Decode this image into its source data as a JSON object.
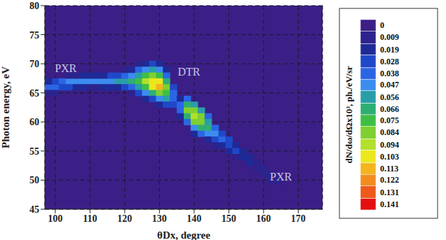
{
  "chart_data": {
    "type": "heatmap",
    "x_label": "θDx, degree",
    "y_label": "Photon energy, eV",
    "xlim": [
      97,
      177
    ],
    "xticks": [
      100,
      110,
      120,
      130,
      140,
      150,
      160,
      170
    ],
    "ylim": [
      45,
      80
    ],
    "yticks": [
      45,
      50,
      55,
      60,
      65,
      70,
      75,
      80
    ],
    "grid": true,
    "annotations": [
      {
        "text": "PXR",
        "x": 103,
        "y": 69.3
      },
      {
        "text": "DTR",
        "x": 138.5,
        "y": 68.7
      },
      {
        "text": "PXR",
        "x": 165,
        "y": 50.6
      }
    ],
    "cells": [
      [
        98,
        66,
        0.04
      ],
      [
        98,
        67,
        0.02
      ],
      [
        98,
        65,
        0.01
      ],
      [
        100,
        66,
        0.045
      ],
      [
        100,
        67,
        0.03
      ],
      [
        100,
        65,
        0.01
      ],
      [
        102,
        67,
        0.045
      ],
      [
        102,
        66,
        0.035
      ],
      [
        104,
        67,
        0.05
      ],
      [
        104,
        66,
        0.03
      ],
      [
        104,
        68,
        0.01
      ],
      [
        106,
        67,
        0.05
      ],
      [
        106,
        66,
        0.025
      ],
      [
        106,
        68,
        0.015
      ],
      [
        108,
        67,
        0.05
      ],
      [
        108,
        68,
        0.02
      ],
      [
        108,
        66,
        0.02
      ],
      [
        110,
        67,
        0.05
      ],
      [
        110,
        68,
        0.025
      ],
      [
        110,
        66,
        0.015
      ],
      [
        112,
        67,
        0.05
      ],
      [
        112,
        68,
        0.025
      ],
      [
        112,
        66,
        0.015
      ],
      [
        114,
        67,
        0.05
      ],
      [
        114,
        68,
        0.025
      ],
      [
        114,
        66,
        0.02
      ],
      [
        116,
        67,
        0.055
      ],
      [
        116,
        68,
        0.03
      ],
      [
        116,
        66,
        0.02
      ],
      [
        118,
        67,
        0.06
      ],
      [
        118,
        68,
        0.035
      ],
      [
        118,
        66,
        0.025
      ],
      [
        120,
        67,
        0.065
      ],
      [
        120,
        68,
        0.04
      ],
      [
        120,
        66,
        0.03
      ],
      [
        120,
        69,
        0.015
      ],
      [
        122,
        67,
        0.07
      ],
      [
        122,
        68,
        0.05
      ],
      [
        122,
        66,
        0.04
      ],
      [
        122,
        69,
        0.025
      ],
      [
        122,
        65,
        0.015
      ],
      [
        124,
        70,
        0.015
      ],
      [
        124,
        69,
        0.04
      ],
      [
        124,
        68,
        0.065
      ],
      [
        124,
        67,
        0.08
      ],
      [
        124,
        66,
        0.06
      ],
      [
        124,
        65,
        0.03
      ],
      [
        126,
        70,
        0.025
      ],
      [
        126,
        69,
        0.05
      ],
      [
        126,
        68,
        0.08
      ],
      [
        126,
        67,
        0.095
      ],
      [
        126,
        66,
        0.08
      ],
      [
        126,
        65,
        0.05
      ],
      [
        126,
        64,
        0.02
      ],
      [
        128,
        70,
        0.03
      ],
      [
        128,
        69,
        0.06
      ],
      [
        128,
        68,
        0.09
      ],
      [
        128,
        67,
        0.11
      ],
      [
        128,
        66,
        0.105
      ],
      [
        128,
        65,
        0.07
      ],
      [
        128,
        64,
        0.035
      ],
      [
        130,
        70,
        0.02
      ],
      [
        130,
        69,
        0.05
      ],
      [
        130,
        68,
        0.08
      ],
      [
        130,
        67,
        0.105
      ],
      [
        130,
        66,
        0.115
      ],
      [
        130,
        65,
        0.09
      ],
      [
        130,
        64,
        0.05
      ],
      [
        130,
        63,
        0.02
      ],
      [
        132,
        69,
        0.025
      ],
      [
        132,
        68,
        0.045
      ],
      [
        132,
        67,
        0.07
      ],
      [
        132,
        66,
        0.085
      ],
      [
        132,
        65,
        0.08
      ],
      [
        132,
        64,
        0.06
      ],
      [
        132,
        63,
        0.03
      ],
      [
        134,
        66,
        0.03
      ],
      [
        134,
        65,
        0.04
      ],
      [
        134,
        64,
        0.045
      ],
      [
        134,
        63,
        0.03
      ],
      [
        136,
        64,
        0.02
      ],
      [
        136,
        63,
        0.04
      ],
      [
        136,
        62,
        0.04
      ],
      [
        136,
        61,
        0.02
      ],
      [
        138,
        64,
        0.04
      ],
      [
        138,
        63,
        0.07
      ],
      [
        138,
        62,
        0.085
      ],
      [
        138,
        61,
        0.07
      ],
      [
        138,
        60,
        0.04
      ],
      [
        140,
        63,
        0.06
      ],
      [
        140,
        62,
        0.09
      ],
      [
        140,
        61,
        0.1
      ],
      [
        140,
        60,
        0.085
      ],
      [
        140,
        59,
        0.05
      ],
      [
        140,
        58,
        0.02
      ],
      [
        142,
        62,
        0.06
      ],
      [
        142,
        61,
        0.085
      ],
      [
        142,
        60,
        0.09
      ],
      [
        142,
        59,
        0.07
      ],
      [
        142,
        58,
        0.04
      ],
      [
        144,
        61,
        0.04
      ],
      [
        144,
        60,
        0.06
      ],
      [
        144,
        59,
        0.07
      ],
      [
        144,
        58,
        0.05
      ],
      [
        144,
        57,
        0.02
      ],
      [
        146,
        59,
        0.045
      ],
      [
        146,
        58,
        0.05
      ],
      [
        146,
        57,
        0.035
      ],
      [
        146,
        56,
        0.015
      ],
      [
        148,
        58,
        0.035
      ],
      [
        148,
        57,
        0.04
      ],
      [
        148,
        56,
        0.025
      ],
      [
        150,
        57,
        0.03
      ],
      [
        150,
        56,
        0.035
      ],
      [
        150,
        55,
        0.02
      ],
      [
        152,
        56,
        0.025
      ],
      [
        152,
        55,
        0.03
      ],
      [
        152,
        54,
        0.015
      ],
      [
        154,
        55,
        0.022
      ],
      [
        154,
        54,
        0.025
      ],
      [
        156,
        54,
        0.02
      ],
      [
        156,
        53,
        0.02
      ],
      [
        158,
        53,
        0.018
      ],
      [
        158,
        52,
        0.015
      ],
      [
        160,
        52,
        0.015
      ],
      [
        160,
        51,
        0.012
      ],
      [
        162,
        51,
        0.012
      ],
      [
        162,
        50,
        0.01
      ],
      [
        164,
        50,
        0.01
      ],
      [
        166,
        49,
        0.008
      ]
    ],
    "colorbar": {
      "label": "dN/dω/dΩx10³, ph./eV/sr",
      "range": [
        0,
        0.15
      ],
      "ticks": [
        0,
        0.009,
        0.019,
        0.028,
        0.038,
        0.047,
        0.056,
        0.066,
        0.075,
        0.084,
        0.094,
        0.103,
        0.113,
        0.122,
        0.131,
        0.141
      ],
      "colors": [
        "#3b1f86",
        "#2c238c",
        "#1f2a96",
        "#1f48c8",
        "#2a66e4",
        "#3c8cf0",
        "#2a9ea8",
        "#2fae74",
        "#3ebf44",
        "#7fd030",
        "#b2e02c",
        "#ece81e",
        "#f4b41e",
        "#f28c1e",
        "#ee5a1c",
        "#e41010"
      ]
    }
  }
}
